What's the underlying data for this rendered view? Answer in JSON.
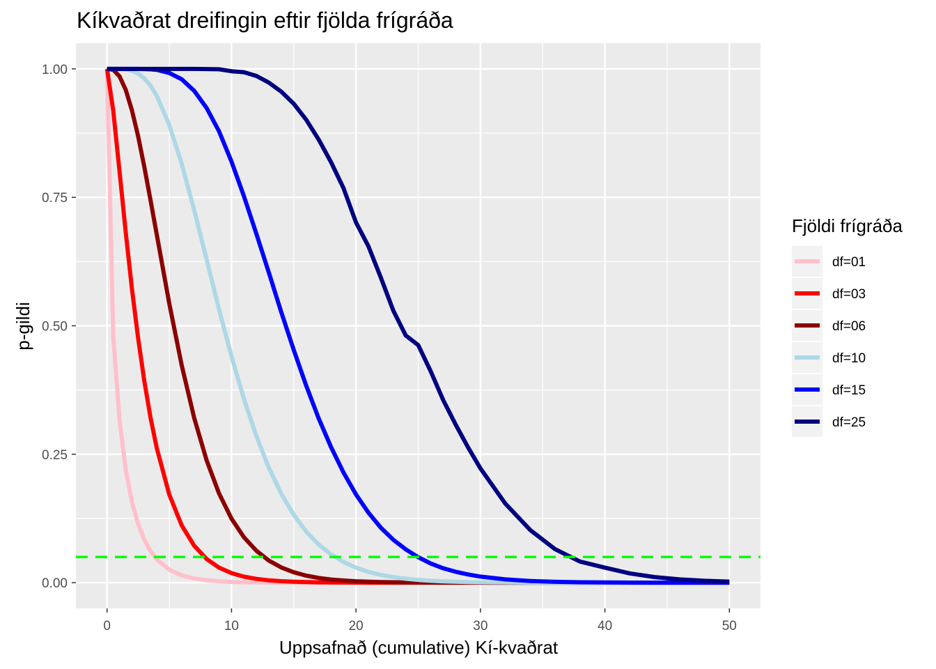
{
  "chart_data": {
    "type": "line",
    "title": "Kíkvaðrat dreifingin eftir fjölda frígráða",
    "xlabel": "Uppsafnað (cumulative) Kí-kvaðrat",
    "ylabel": "p-gildi",
    "xlim": [
      -2.5,
      52.5
    ],
    "ylim": [
      -0.05,
      1.05
    ],
    "x_ticks": [
      0,
      10,
      20,
      30,
      40,
      50
    ],
    "x_tick_labels": [
      "0",
      "10",
      "20",
      "30",
      "40",
      "50"
    ],
    "y_ticks": [
      0,
      0.25,
      0.5,
      0.75,
      1.0
    ],
    "y_tick_labels": [
      "0.00",
      "0.25",
      "0.50",
      "0.75",
      "1.00"
    ],
    "grid": true,
    "background": "#ebebeb",
    "legend": {
      "title": "Fjöldi frígráða",
      "position": "right"
    },
    "x": [
      0,
      0.5,
      1,
      1.5,
      2,
      2.5,
      3,
      3.5,
      4,
      5,
      6,
      7,
      8,
      9,
      10,
      11,
      12,
      13,
      14,
      15,
      16,
      17,
      18,
      19,
      20,
      21,
      22,
      23,
      24,
      25,
      26,
      27,
      28,
      29,
      30,
      32,
      34,
      36,
      38,
      40,
      42,
      44,
      46,
      48,
      50
    ],
    "series": [
      {
        "name": "df=01",
        "color": "#ffc0cb",
        "values": [
          1.0,
          0.4795,
          0.3173,
          0.2207,
          0.1573,
          0.1138,
          0.0833,
          0.0614,
          0.0455,
          0.0253,
          0.0143,
          0.0082,
          0.0047,
          0.0027,
          0.0016,
          0.0009,
          0.0005,
          0.0003,
          0.0002,
          0.0001,
          0.0001,
          0.0,
          0.0,
          0.0,
          0.0,
          0.0,
          0.0,
          0.0,
          0.0,
          0.0,
          0.0,
          0.0,
          0.0,
          0.0,
          0.0,
          0.0,
          0.0,
          0.0,
          0.0,
          0.0,
          0.0,
          0.0,
          0.0,
          0.0,
          0.0
        ]
      },
      {
        "name": "df=03",
        "color": "#ff0000",
        "values": [
          1.0,
          0.9189,
          0.8013,
          0.6823,
          0.5724,
          0.4753,
          0.3916,
          0.3208,
          0.2615,
          0.1718,
          0.1116,
          0.0719,
          0.046,
          0.0293,
          0.0186,
          0.0117,
          0.0074,
          0.0046,
          0.0029,
          0.0018,
          0.0011,
          0.0007,
          0.0004,
          0.0003,
          0.0002,
          0.0001,
          0.0001,
          0.0,
          0.0,
          0.0,
          0.0,
          0.0,
          0.0,
          0.0,
          0.0,
          0.0,
          0.0,
          0.0,
          0.0,
          0.0,
          0.0,
          0.0,
          0.0,
          0.0,
          0.0
        ]
      },
      {
        "name": "df=06",
        "color": "#8b0000",
        "values": [
          1.0,
          0.9982,
          0.9856,
          0.9595,
          0.9197,
          0.8685,
          0.8088,
          0.744,
          0.6767,
          0.5438,
          0.4232,
          0.3208,
          0.2381,
          0.1736,
          0.1247,
          0.0884,
          0.062,
          0.043,
          0.0296,
          0.0203,
          0.0138,
          0.0093,
          0.0062,
          0.0042,
          0.0028,
          0.0018,
          0.0012,
          0.0008,
          0.0005,
          0.0003,
          0.0002,
          0.0001,
          0.0001,
          0.0001,
          0.0,
          0.0,
          0.0,
          0.0,
          0.0,
          0.0,
          0.0,
          0.0,
          0.0,
          0.0,
          0.0
        ]
      },
      {
        "name": "df=10",
        "color": "#add8e6",
        "values": [
          1.0,
          1.0,
          0.9998,
          0.9991,
          0.9963,
          0.9908,
          0.9814,
          0.9673,
          0.9473,
          0.8912,
          0.8153,
          0.7254,
          0.6288,
          0.5321,
          0.4405,
          0.3575,
          0.2851,
          0.2237,
          0.173,
          0.1321,
          0.0996,
          0.0744,
          0.055,
          0.0403,
          0.0293,
          0.0211,
          0.0151,
          0.0107,
          0.0076,
          0.0053,
          0.0037,
          0.0026,
          0.0018,
          0.0013,
          0.0009,
          0.0004,
          0.0002,
          0.0001,
          0.0,
          0.0,
          0.0,
          0.0,
          0.0,
          0.0,
          0.0
        ]
      },
      {
        "name": "df=15",
        "color": "#0000ff",
        "values": [
          1.0,
          1.0,
          1.0,
          1.0,
          1.0,
          1.0,
          0.9997,
          0.9991,
          0.9982,
          0.9921,
          0.9799,
          0.9574,
          0.9238,
          0.8786,
          0.8197,
          0.752,
          0.6787,
          0.6036,
          0.5265,
          0.453,
          0.3837,
          0.32,
          0.2637,
          0.2142,
          0.1719,
          0.1364,
          0.1069,
          0.0834,
          0.0649,
          0.0496,
          0.0374,
          0.0281,
          0.0213,
          0.0161,
          0.0119,
          0.0064,
          0.0033,
          0.0017,
          0.0009,
          0.0004,
          0.0002,
          0.0001,
          0.0,
          0.0,
          0.0
        ]
      },
      {
        "name": "df=25",
        "color": "#000080",
        "values": [
          1.0,
          1.0,
          1.0,
          1.0,
          1.0,
          1.0,
          1.0,
          1.0,
          1.0,
          1.0,
          1.0,
          0.9999,
          0.9997,
          0.9993,
          0.9955,
          0.9936,
          0.9863,
          0.9733,
          0.9557,
          0.9321,
          0.9012,
          0.8627,
          0.8183,
          0.7678,
          0.7014,
          0.6549,
          0.5936,
          0.5295,
          0.4811,
          0.4624,
          0.4115,
          0.3559,
          0.3082,
          0.2636,
          0.2224,
          0.1539,
          0.1024,
          0.0651,
          0.0412,
          0.0292,
          0.0181,
          0.0109,
          0.0064,
          0.0037,
          0.0021
        ]
      }
    ],
    "hline": {
      "y": 0.05,
      "color": "#00ff00",
      "style": "dashed"
    }
  }
}
